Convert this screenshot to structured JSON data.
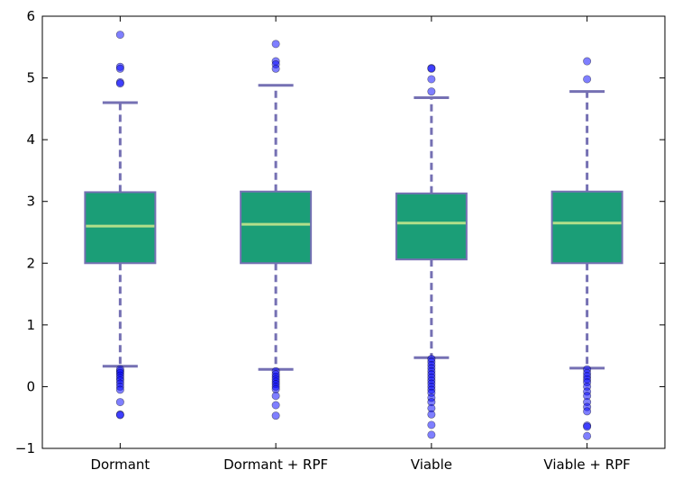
{
  "chart_data": {
    "type": "boxplot",
    "categories": [
      "Dormant",
      "Dormant + RPF",
      "Viable",
      "Viable + RPF"
    ],
    "ylim": [
      -1,
      6
    ],
    "yticks": [
      "−1",
      "0",
      "1",
      "2",
      "3",
      "4",
      "5",
      "6"
    ],
    "boxes": [
      {
        "name": "Dormant",
        "whisker_low": 0.33,
        "q1": 2.0,
        "median": 2.6,
        "q3": 3.15,
        "whisker_high": 4.6,
        "outliers": [
          5.7,
          5.18,
          5.15,
          4.93,
          4.91,
          0.28,
          0.25,
          0.22,
          0.18,
          0.14,
          0.1,
          0.05,
          0.0,
          -0.05,
          -0.25,
          -0.45,
          -0.46
        ]
      },
      {
        "name": "Dormant + RPF",
        "whisker_low": 0.28,
        "q1": 2.0,
        "median": 2.63,
        "q3": 3.16,
        "whisker_high": 4.88,
        "outliers": [
          5.55,
          5.27,
          5.22,
          5.15,
          0.25,
          0.2,
          0.16,
          0.12,
          0.08,
          0.04,
          0.0,
          -0.04,
          -0.15,
          -0.3,
          -0.47
        ]
      },
      {
        "name": "Viable",
        "whisker_low": 0.47,
        "q1": 2.06,
        "median": 2.65,
        "q3": 3.13,
        "whisker_high": 4.68,
        "outliers": [
          5.16,
          5.15,
          4.98,
          4.78,
          0.45,
          0.4,
          0.35,
          0.3,
          0.25,
          0.2,
          0.15,
          0.1,
          0.05,
          0.0,
          -0.05,
          -0.1,
          -0.18,
          -0.25,
          -0.35,
          -0.45,
          -0.62,
          -0.78
        ]
      },
      {
        "name": "Viable + RPF",
        "whisker_low": 0.3,
        "q1": 2.0,
        "median": 2.65,
        "q3": 3.16,
        "whisker_high": 4.78,
        "outliers": [
          5.27,
          4.98,
          0.28,
          0.22,
          0.17,
          0.12,
          0.07,
          0.0,
          -0.08,
          -0.15,
          -0.25,
          -0.33,
          -0.4,
          -0.63,
          -0.65,
          -0.8
        ]
      }
    ],
    "title": "",
    "xlabel": "",
    "ylabel": "",
    "grid": false,
    "colors": {
      "box_fill": "#1b9e77",
      "box_edge": "#7570b3",
      "median": "#b2df8a",
      "whisker": "#7570b3",
      "outlier": "#0000ff"
    }
  }
}
